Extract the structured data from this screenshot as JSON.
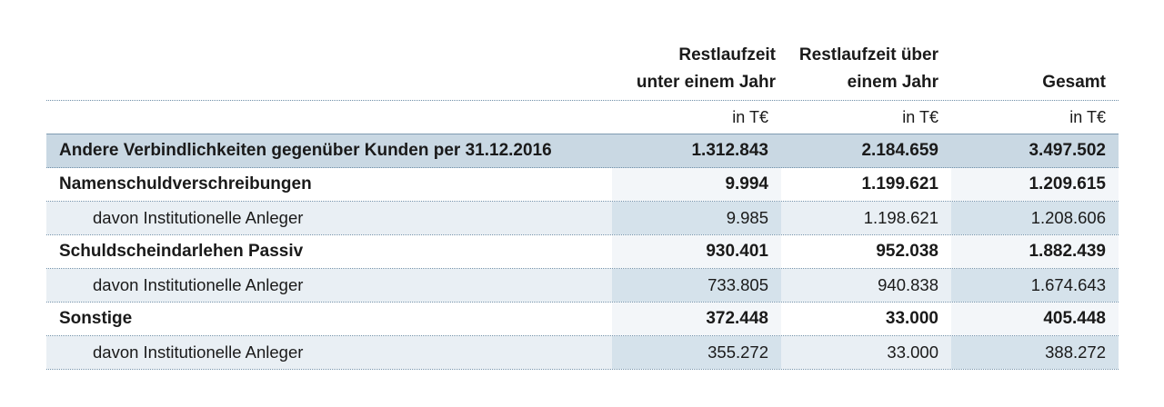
{
  "header": {
    "col1_line1": "Restlaufzeit",
    "col1_line2": "unter einem Jahr",
    "col2_line1": "Restlaufzeit über",
    "col2_line2": "einem Jahr",
    "col3_line1": "Gesamt",
    "unit": "in T€"
  },
  "rows": [
    {
      "label": "Andere Verbindlichkeiten gegenüber Kunden per 31.12.2016",
      "v1": "1.312.843",
      "v2": "2.184.659",
      "v3": "3.497.502"
    },
    {
      "label": "Namenschuldverschreibungen",
      "v1": "9.994",
      "v2": "1.199.621",
      "v3": "1.209.615"
    },
    {
      "label": "davon Institutionelle Anleger",
      "v1": "9.985",
      "v2": "1.198.621",
      "v3": "1.208.606"
    },
    {
      "label": "Schuldscheindarlehen Passiv",
      "v1": "930.401",
      "v2": "952.038",
      "v3": "1.882.439"
    },
    {
      "label": "davon Institutionelle Anleger",
      "v1": "733.805",
      "v2": "940.838",
      "v3": "1.674.643"
    },
    {
      "label": "Sonstige",
      "v1": "372.448",
      "v2": "33.000",
      "v3": "405.448"
    },
    {
      "label": "davon Institutionelle Anleger",
      "v1": "355.272",
      "v2": "33.000",
      "v3": "388.272"
    }
  ],
  "colors": {
    "total_row": "#c9d8e3",
    "shade_light": "#e9eff4",
    "shade_mid": "#d5e2eb",
    "rule": "#6f8fa8"
  }
}
